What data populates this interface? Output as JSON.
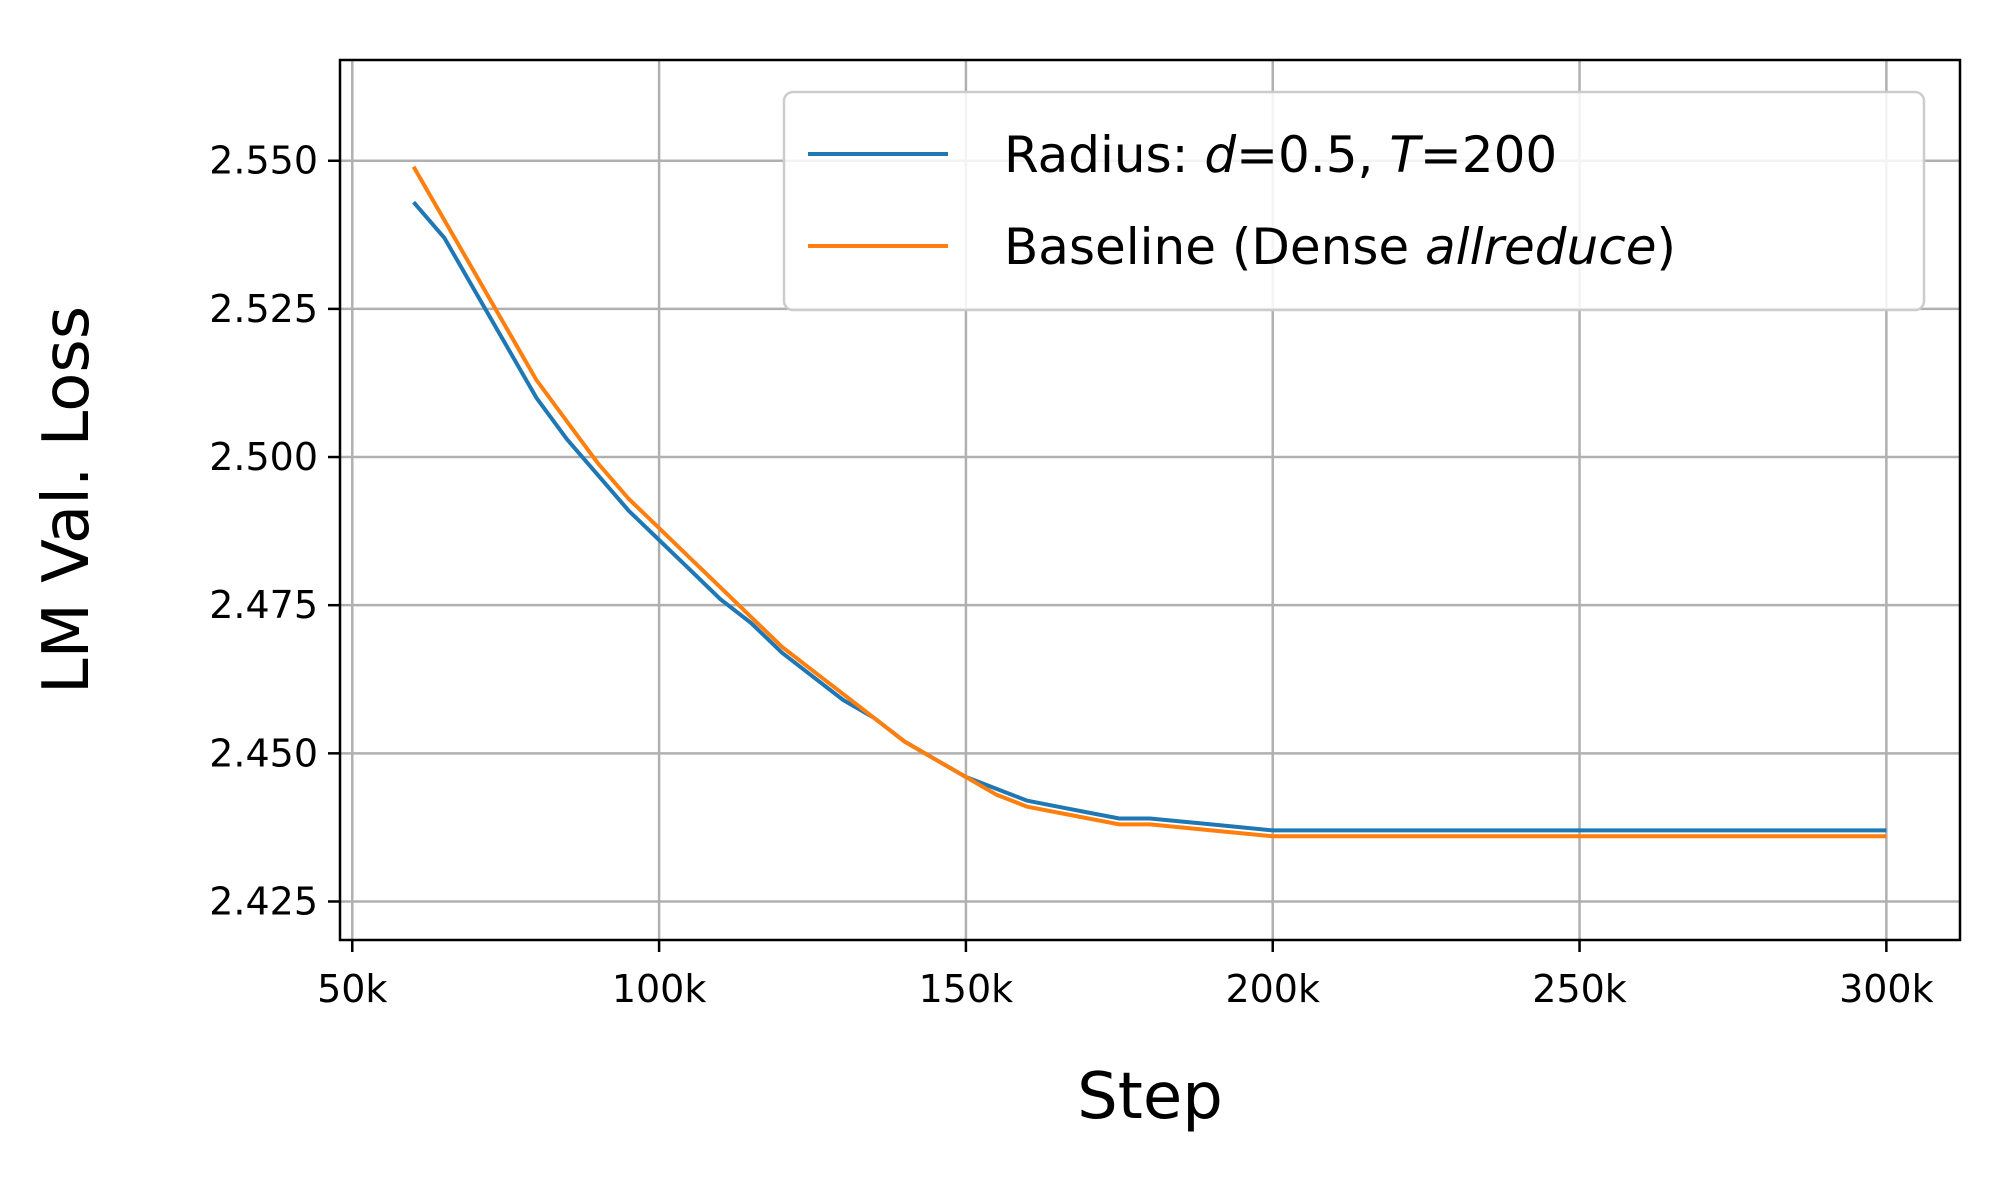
{
  "chart_data": {
    "type": "line",
    "xlabel": "Step",
    "ylabel": "LM Val. Loss",
    "xlim": [
      48000,
      312000
    ],
    "ylim": [
      2.4185,
      2.567
    ],
    "xticks": [
      50000,
      100000,
      150000,
      200000,
      250000,
      300000
    ],
    "xtick_labels": [
      "50k",
      "100k",
      "150k",
      "200k",
      "250k",
      "300k"
    ],
    "yticks": [
      2.425,
      2.45,
      2.475,
      2.5,
      2.525,
      2.55
    ],
    "ytick_labels": [
      "2.425",
      "2.450",
      "2.475",
      "2.500",
      "2.525",
      "2.550"
    ],
    "grid": true,
    "legend_position": "top-right",
    "series": [
      {
        "name": "Radius: d=0.5, T=200",
        "legend_parts": [
          {
            "text": "Radius: ",
            "italic": false
          },
          {
            "text": "d",
            "italic": true
          },
          {
            "text": "=0.5, ",
            "italic": false
          },
          {
            "text": "T",
            "italic": true
          },
          {
            "text": "=200",
            "italic": false
          }
        ],
        "color": "#1f77b4",
        "x": [
          60000,
          65000,
          70000,
          75000,
          80000,
          85000,
          90000,
          95000,
          100000,
          105000,
          110000,
          115000,
          120000,
          125000,
          130000,
          135000,
          140000,
          145000,
          150000,
          155000,
          160000,
          165000,
          170000,
          175000,
          180000,
          190000,
          200000,
          210000,
          220000,
          230000,
          240000,
          250000,
          260000,
          270000,
          280000,
          290000,
          300000
        ],
        "y": [
          2.543,
          2.537,
          2.528,
          2.519,
          2.51,
          2.503,
          2.497,
          2.491,
          2.486,
          2.481,
          2.476,
          2.472,
          2.467,
          2.463,
          2.459,
          2.456,
          2.452,
          2.449,
          2.446,
          2.444,
          2.442,
          2.441,
          2.44,
          2.439,
          2.439,
          2.438,
          2.437,
          2.437,
          2.437,
          2.437,
          2.437,
          2.437,
          2.437,
          2.437,
          2.437,
          2.437,
          2.437
        ]
      },
      {
        "name": "Baseline (Dense allreduce)",
        "legend_parts": [
          {
            "text": "Baseline (Dense ",
            "italic": false
          },
          {
            "text": "allreduce",
            "italic": true
          },
          {
            "text": ")",
            "italic": false
          }
        ],
        "color": "#ff7f0e",
        "x": [
          60000,
          65000,
          70000,
          75000,
          80000,
          85000,
          90000,
          95000,
          100000,
          105000,
          110000,
          115000,
          120000,
          125000,
          130000,
          135000,
          140000,
          145000,
          150000,
          155000,
          160000,
          165000,
          170000,
          175000,
          180000,
          190000,
          200000,
          210000,
          220000,
          230000,
          240000,
          250000,
          260000,
          270000,
          280000,
          290000,
          300000
        ],
        "y": [
          2.549,
          2.54,
          2.531,
          2.522,
          2.513,
          2.506,
          2.499,
          2.493,
          2.488,
          2.483,
          2.478,
          2.473,
          2.468,
          2.464,
          2.46,
          2.456,
          2.452,
          2.449,
          2.446,
          2.443,
          2.441,
          2.44,
          2.439,
          2.438,
          2.438,
          2.437,
          2.436,
          2.436,
          2.436,
          2.436,
          2.436,
          2.436,
          2.436,
          2.436,
          2.436,
          2.436,
          2.436
        ]
      }
    ]
  }
}
